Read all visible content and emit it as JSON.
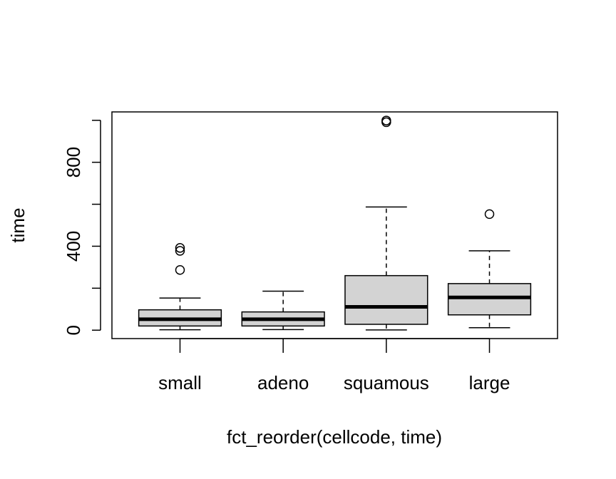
{
  "chart_data": {
    "type": "boxplot",
    "title": "",
    "xlabel": "fct_reorder(cellcode, time)",
    "ylabel": "time",
    "ylim": [
      -40,
      1040
    ],
    "y_ticks": [
      0,
      200,
      400,
      600,
      800,
      1000
    ],
    "y_tick_labels": [
      "0",
      "",
      "400",
      "",
      "800",
      ""
    ],
    "categories": [
      "small",
      "adeno",
      "squamous",
      "large"
    ],
    "boxes": [
      {
        "name": "small",
        "whisker_low": 2,
        "q1": 20,
        "median": 52,
        "q3": 97,
        "whisker_high": 153,
        "outliers": [
          287,
          378,
          392
        ]
      },
      {
        "name": "adeno",
        "whisker_low": 3,
        "q1": 20,
        "median": 52,
        "q3": 87,
        "whisker_high": 186,
        "outliers": []
      },
      {
        "name": "squamous",
        "whisker_low": 1,
        "q1": 28,
        "median": 111,
        "q3": 260,
        "whisker_high": 587,
        "outliers": [
          991,
          999
        ]
      },
      {
        "name": "large",
        "whisker_low": 12,
        "q1": 73,
        "median": 156,
        "q3": 222,
        "whisker_high": 378,
        "outliers": [
          553
        ]
      }
    ],
    "box_fill": "#d3d3d3",
    "grid": false,
    "legend": "none"
  }
}
